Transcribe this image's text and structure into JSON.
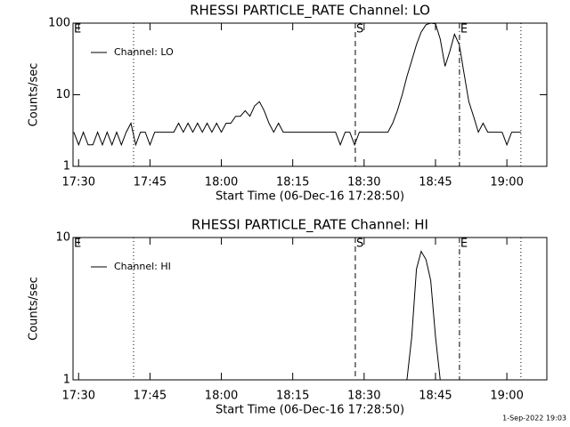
{
  "chart_data": [
    {
      "type": "line",
      "title": "RHESSI PARTICLE_RATE Channel: LO",
      "xlabel": "Start Time (06-Dec-16 17:28:50)",
      "ylabel": "Counts/sec",
      "x": [
        1049,
        1050,
        1051,
        1052,
        1053,
        1054,
        1055,
        1056,
        1057,
        1058,
        1059,
        1060,
        1061,
        1062,
        1063,
        1064,
        1065,
        1066,
        1067,
        1068,
        1069,
        1070,
        1071,
        1072,
        1073,
        1074,
        1075,
        1076,
        1077,
        1078,
        1079,
        1080,
        1081,
        1082,
        1083,
        1084,
        1085,
        1086,
        1087,
        1088,
        1089,
        1090,
        1091,
        1092,
        1093,
        1094,
        1095,
        1096,
        1097,
        1098,
        1099,
        1100,
        1101,
        1102,
        1103,
        1104,
        1105,
        1106,
        1107,
        1108,
        1109,
        1110,
        1111,
        1112,
        1113,
        1114,
        1115,
        1116,
        1117,
        1118,
        1119,
        1120,
        1121,
        1122,
        1123,
        1124,
        1125,
        1126,
        1127,
        1128,
        1129,
        1130,
        1131,
        1132,
        1133,
        1134,
        1135,
        1136,
        1137,
        1138,
        1139,
        1140,
        1141,
        1142,
        1143
      ],
      "series": [
        {
          "name": "Channel: LO",
          "color": "#000000",
          "values": [
            3,
            2,
            3,
            2,
            2,
            3,
            2,
            3,
            2,
            3,
            2,
            3,
            4,
            2,
            3,
            3,
            2,
            3,
            3,
            3,
            3,
            3,
            4,
            3,
            4,
            3,
            4,
            3,
            4,
            3,
            4,
            3,
            4,
            4,
            5,
            5,
            6,
            5,
            7,
            8,
            6,
            4,
            3,
            4,
            3,
            3,
            3,
            3,
            3,
            3,
            3,
            3,
            3,
            3,
            3,
            3,
            2,
            3,
            3,
            2,
            3,
            3,
            3,
            3,
            3,
            3,
            3,
            4,
            6,
            10,
            18,
            30,
            50,
            75,
            95,
            100,
            98,
            60,
            25,
            40,
            70,
            50,
            20,
            8,
            5,
            3,
            4,
            3,
            3,
            3,
            3,
            2,
            3,
            3,
            3
          ]
        }
      ],
      "xlim": [
        1048.83,
        1148.4
      ],
      "xticks": [
        {
          "value": 1050,
          "label": "17:30"
        },
        {
          "value": 1065,
          "label": "17:45"
        },
        {
          "value": 1080,
          "label": "18:00"
        },
        {
          "value": 1095,
          "label": "18:15"
        },
        {
          "value": 1110,
          "label": "18:30"
        },
        {
          "value": 1125,
          "label": "18:45"
        },
        {
          "value": 1140,
          "label": "19:00"
        }
      ],
      "ylim": [
        1,
        100
      ],
      "yticks": [
        1,
        10,
        100
      ],
      "log_y": true,
      "legend": "upper left",
      "annotations": [
        {
          "x": 1048.83,
          "label": "E",
          "style": "dash-dot"
        },
        {
          "x": 1061.55,
          "style": "dotted"
        },
        {
          "x": 1108.15,
          "label": "S",
          "style": "dashed"
        },
        {
          "x": 1130.04,
          "label": "E",
          "style": "dash-dot"
        },
        {
          "x": 1142.95,
          "style": "dotted"
        }
      ]
    },
    {
      "type": "line",
      "title": "RHESSI PARTICLE_RATE Channel: HI",
      "xlabel": "Start Time (06-Dec-16 17:28:50)",
      "ylabel": "Counts/sec",
      "x": [
        1049,
        1050,
        1051,
        1052,
        1053,
        1054,
        1055,
        1056,
        1057,
        1058,
        1059,
        1060,
        1061,
        1062,
        1063,
        1064,
        1065,
        1066,
        1067,
        1068,
        1069,
        1070,
        1071,
        1072,
        1073,
        1074,
        1075,
        1076,
        1077,
        1078,
        1079,
        1080,
        1081,
        1082,
        1083,
        1084,
        1085,
        1086,
        1087,
        1088,
        1089,
        1090,
        1091,
        1092,
        1093,
        1094,
        1095,
        1096,
        1097,
        1098,
        1099,
        1100,
        1101,
        1102,
        1103,
        1104,
        1105,
        1106,
        1107,
        1108,
        1109,
        1110,
        1111,
        1112,
        1113,
        1114,
        1115,
        1116,
        1117,
        1118,
        1119,
        1120,
        1121,
        1122,
        1123,
        1124,
        1125,
        1126,
        1127,
        1128,
        1129,
        1130,
        1131,
        1132,
        1133,
        1134,
        1135,
        1136,
        1137,
        1138,
        1139,
        1140,
        1141,
        1142,
        1143
      ],
      "series": [
        {
          "name": "Channel: HI",
          "color": "#000000",
          "values": [
            1,
            1,
            1,
            1,
            1,
            1,
            1,
            1,
            1,
            1,
            1,
            1,
            1,
            1,
            1,
            1,
            1,
            1,
            1,
            1,
            1,
            1,
            1,
            1,
            1,
            1,
            1,
            1,
            1,
            1,
            1,
            1,
            1,
            1,
            1,
            1,
            1,
            1,
            1,
            1,
            1,
            1,
            1,
            1,
            1,
            1,
            1,
            1,
            1,
            1,
            1,
            1,
            1,
            1,
            1,
            1,
            1,
            1,
            1,
            1,
            1,
            1,
            1,
            1,
            1,
            1,
            1,
            1,
            1,
            1,
            1,
            2,
            6,
            8,
            7,
            5,
            2,
            1,
            1,
            1,
            1,
            1,
            1,
            1,
            1,
            1,
            1,
            1,
            1,
            1,
            1,
            1,
            1,
            1,
            1
          ]
        }
      ],
      "xlim": [
        1048.83,
        1148.4
      ],
      "xticks": [
        {
          "value": 1050,
          "label": "17:30"
        },
        {
          "value": 1065,
          "label": "17:45"
        },
        {
          "value": 1080,
          "label": "18:00"
        },
        {
          "value": 1095,
          "label": "18:15"
        },
        {
          "value": 1110,
          "label": "18:30"
        },
        {
          "value": 1125,
          "label": "18:45"
        },
        {
          "value": 1140,
          "label": "19:00"
        }
      ],
      "ylim": [
        1,
        10
      ],
      "yticks": [
        1,
        10
      ],
      "log_y": true,
      "legend": "upper left",
      "annotations": [
        {
          "x": 1048.83,
          "label": "E",
          "style": "dash-dot"
        },
        {
          "x": 1061.55,
          "style": "dotted"
        },
        {
          "x": 1108.15,
          "label": "S",
          "style": "dashed"
        },
        {
          "x": 1130.04,
          "label": "E",
          "style": "dash-dot"
        },
        {
          "x": 1142.95,
          "style": "dotted"
        }
      ]
    }
  ],
  "footer": "1-Sep-2022 19:03"
}
